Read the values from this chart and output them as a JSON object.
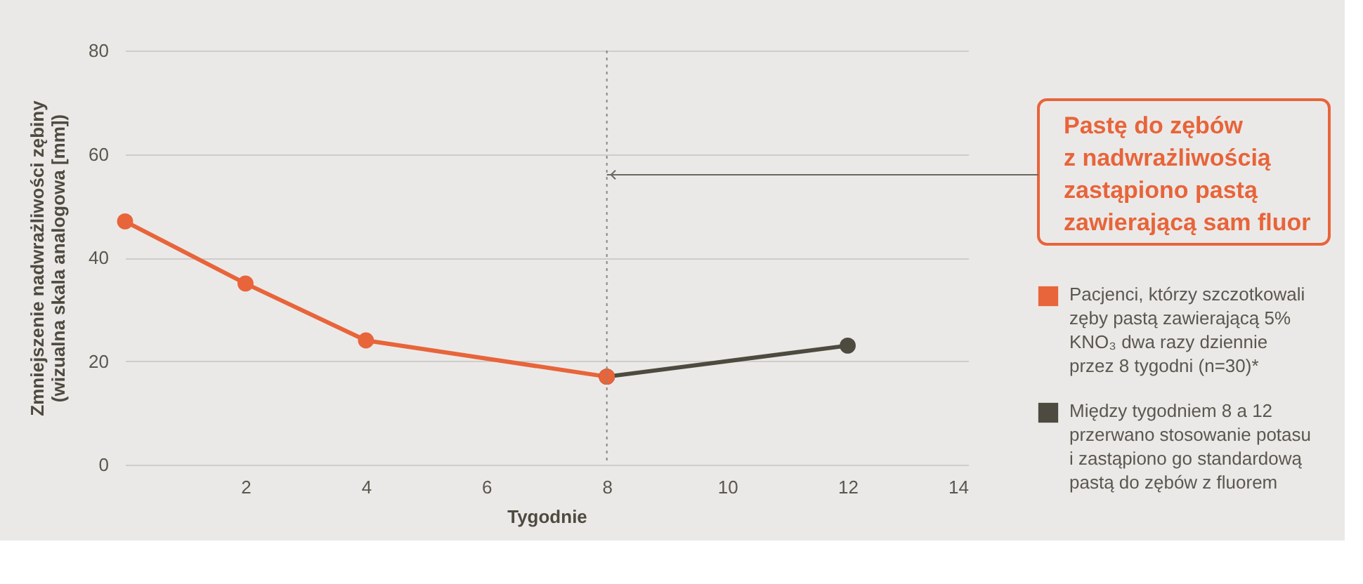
{
  "chart_data": {
    "type": "line",
    "xlabel": "Tygodnie",
    "ylabel": "Zmniejszenie nadwrażliwości zębiny\n(wizualna skala analogowa [mm])",
    "xlim": [
      0,
      14
    ],
    "xticks": [
      2,
      4,
      6,
      8,
      10,
      12,
      14
    ],
    "ylim": [
      0,
      80
    ],
    "yticks": [
      0,
      20,
      40,
      60,
      80
    ],
    "series": [
      {
        "name": "Pacjenci, którzy szczotkowali\nzęby pastą zawierającą 5%\nKNO₃ dwa razy dziennie\nprzez 8 tygodni (n=30)*",
        "color": "#e8643a",
        "x": [
          0,
          2,
          4,
          8
        ],
        "values": [
          47,
          35,
          24,
          17
        ]
      },
      {
        "name": "Między tygodniem 8 a 12\nprzerwano stosowanie potasu\ni zastąpiono go standardową\npastą do zębów z fluorem",
        "color": "#4d4a3f",
        "x": [
          8,
          12
        ],
        "values": [
          17,
          23
        ]
      }
    ],
    "ref_lines": [
      {
        "axis": "x",
        "value": 8,
        "color": "#8a8680",
        "line_style": "dotted"
      }
    ],
    "annotations": [
      {
        "text": "Pastę do zębów\nz nadwrażliwością\nzastąpiono pastą\nzawierającą sam fluor",
        "x": 8,
        "y": 56
      }
    ],
    "marker": "circle",
    "line_style": "solid",
    "grid": "y",
    "legend": "right"
  }
}
